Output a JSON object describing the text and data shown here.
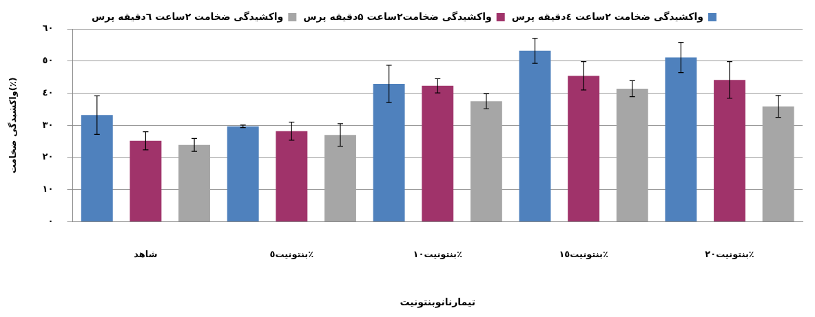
{
  "chart_data": {
    "type": "bar",
    "xlabel": "تیمارنانوبنتونیت",
    "ylabel": "واکشیدگی ضخامت(٪)",
    "categories": [
      "شاهد",
      "بنتونیت٥٪",
      "بنتونیت١٠٪",
      "بنتونیت١٥٪",
      "بنتونیت٢٠٪"
    ],
    "series": [
      {
        "name": "واکشیدگی ضخامت ۲ساعت ٤دقیقه پرس",
        "color": "#4f81bd",
        "values": [
          33.2,
          29.7,
          42.9,
          53.2,
          51.1
        ],
        "errors": [
          6,
          0.4,
          5.8,
          3.9,
          4.7
        ]
      },
      {
        "name": "واکشیدگی ضخامت۲ساعت ۵دقیقه پرس",
        "color": "#a0336a",
        "values": [
          25.2,
          28.2,
          42.3,
          45.4,
          44.1
        ],
        "errors": [
          2.8,
          2.8,
          2.2,
          4.4,
          5.7
        ]
      },
      {
        "name": "واکشیدگی ضخامت ۲ساعت ٦دقیقه پرس",
        "color": "#a6a6a6",
        "values": [
          23.9,
          27,
          37.5,
          41.4,
          35.9
        ],
        "errors": [
          2,
          3.5,
          2.3,
          2.5,
          3.4
        ]
      }
    ],
    "ylim": [
      0,
      60
    ],
    "yticks": [
      {
        "value": 0,
        "label": "٠"
      },
      {
        "value": 10,
        "label": "١٠"
      },
      {
        "value": 20,
        "label": "٢٠"
      },
      {
        "value": 30,
        "label": "٣٠"
      },
      {
        "value": 40,
        "label": "٤٠"
      },
      {
        "value": 50,
        "label": "٥٠"
      },
      {
        "value": 60,
        "label": "٦٠"
      }
    ],
    "grid": "y",
    "legend": "top"
  }
}
